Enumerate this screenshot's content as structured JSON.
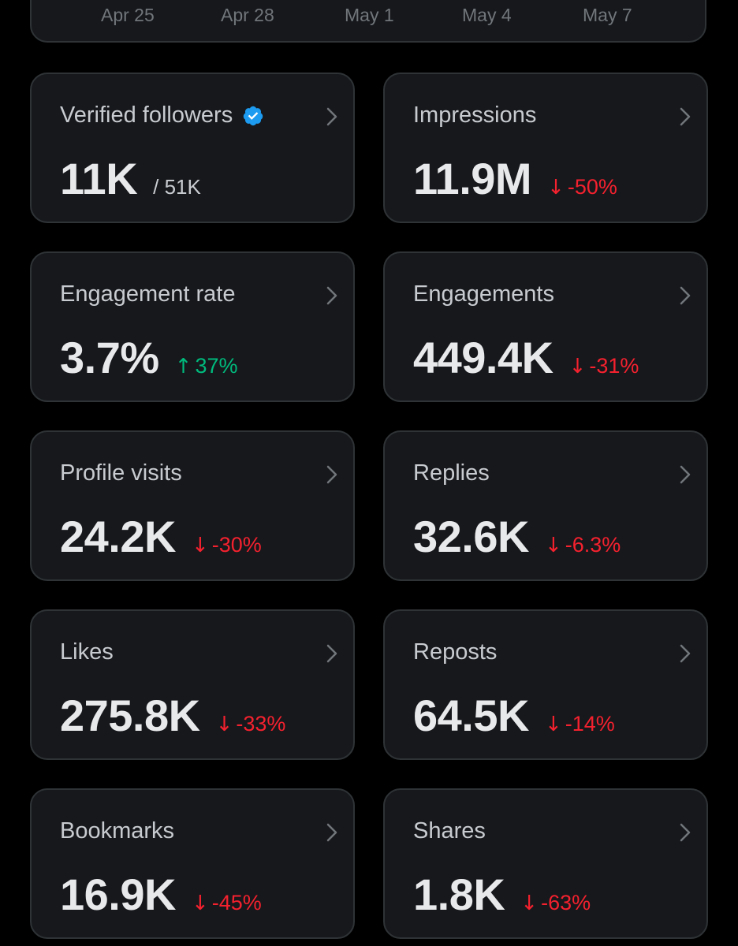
{
  "chart": {
    "x_ticks": [
      "Apr 25",
      "Apr 28",
      "May 1",
      "May 4",
      "May 7"
    ]
  },
  "colors": {
    "background": "#000000",
    "card": "#16181c",
    "border": "#2f3336",
    "verified": "#1d9bf0",
    "down": "#f4212e",
    "up": "#00ba7c"
  },
  "metrics": [
    {
      "title": "Verified followers",
      "value": "11K",
      "sub": "/ 51K",
      "verified": true
    },
    {
      "title": "Impressions",
      "value": "11.9M",
      "arrow": "↓",
      "delta": "-50%",
      "direction": "down"
    },
    {
      "title": "Engagement rate",
      "value": "3.7%",
      "arrow": "↑",
      "delta": "37%",
      "direction": "up"
    },
    {
      "title": "Engagements",
      "value": "449.4K",
      "arrow": "↓",
      "delta": "-31%",
      "direction": "down"
    },
    {
      "title": "Profile visits",
      "value": "24.2K",
      "arrow": "↓",
      "delta": "-30%",
      "direction": "down"
    },
    {
      "title": "Replies",
      "value": "32.6K",
      "arrow": "↓",
      "delta": "-6.3%",
      "direction": "down"
    },
    {
      "title": "Likes",
      "value": "275.8K",
      "arrow": "↓",
      "delta": "-33%",
      "direction": "down"
    },
    {
      "title": "Reposts",
      "value": "64.5K",
      "arrow": "↓",
      "delta": "-14%",
      "direction": "down"
    },
    {
      "title": "Bookmarks",
      "value": "16.9K",
      "arrow": "↓",
      "delta": "-45%",
      "direction": "down"
    },
    {
      "title": "Shares",
      "value": "1.8K",
      "arrow": "↓",
      "delta": "-63%",
      "direction": "down"
    }
  ]
}
